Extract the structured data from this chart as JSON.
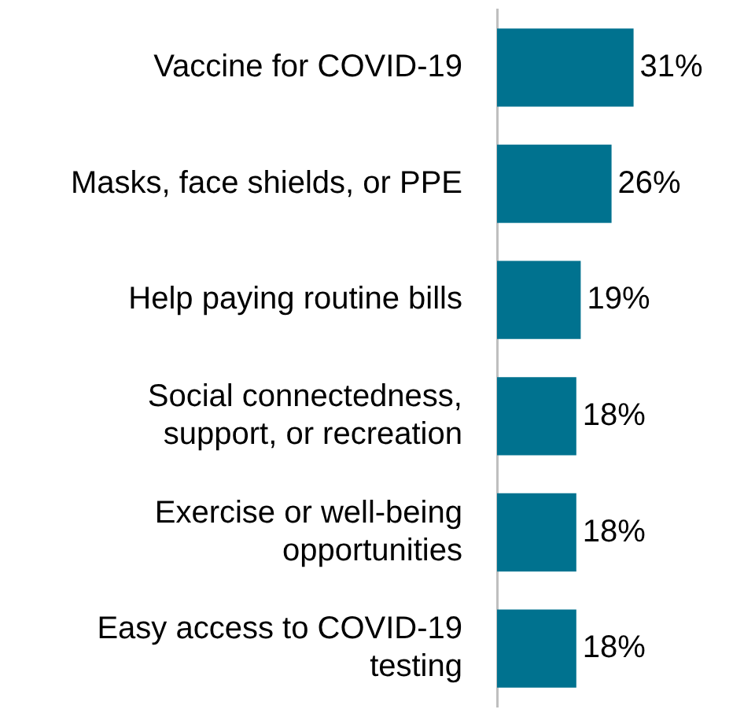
{
  "chart_data": {
    "type": "bar",
    "orientation": "horizontal",
    "categories": [
      "Vaccine for COVID-19",
      "Masks, face shields, or PPE",
      "Help paying routine bills",
      "Social connectedness, support, or recreation",
      "Exercise or well-being opportunities",
      "Easy access to COVID-19 testing"
    ],
    "values": [
      31,
      26,
      19,
      18,
      18,
      18
    ],
    "value_labels": [
      "31%",
      "26%",
      "19%",
      "18%",
      "18%",
      "18%"
    ],
    "color": "#00728f",
    "legend": false
  }
}
